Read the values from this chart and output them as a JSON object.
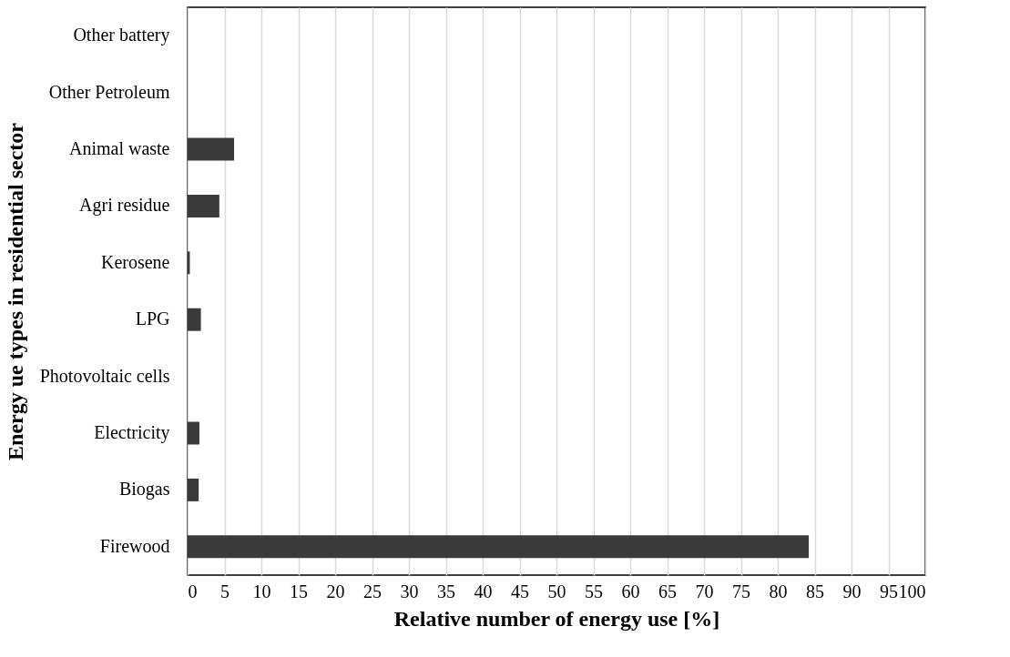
{
  "chart_data": {
    "type": "bar",
    "orientation": "horizontal",
    "xlabel": "Relative number of energy use [%]",
    "ylabel": "Energy ue types in residential sector",
    "categories": [
      "Other battery",
      "Other Petroleum",
      "Animal waste",
      "Agri residue",
      "Kerosene",
      "LPG",
      "Photovoltaic cells",
      "Electricity",
      "Biogas",
      "Firewood"
    ],
    "values": [
      0,
      0,
      6.3,
      4.3,
      0.3,
      1.8,
      0,
      1.6,
      1.5,
      84.2
    ],
    "color": "#3a3a3a",
    "xlim": [
      0,
      100
    ],
    "xticks": [
      0,
      5,
      10,
      15,
      20,
      25,
      30,
      35,
      40,
      45,
      50,
      55,
      60,
      65,
      70,
      75,
      80,
      85,
      90,
      95,
      100
    ],
    "grid": "x"
  }
}
